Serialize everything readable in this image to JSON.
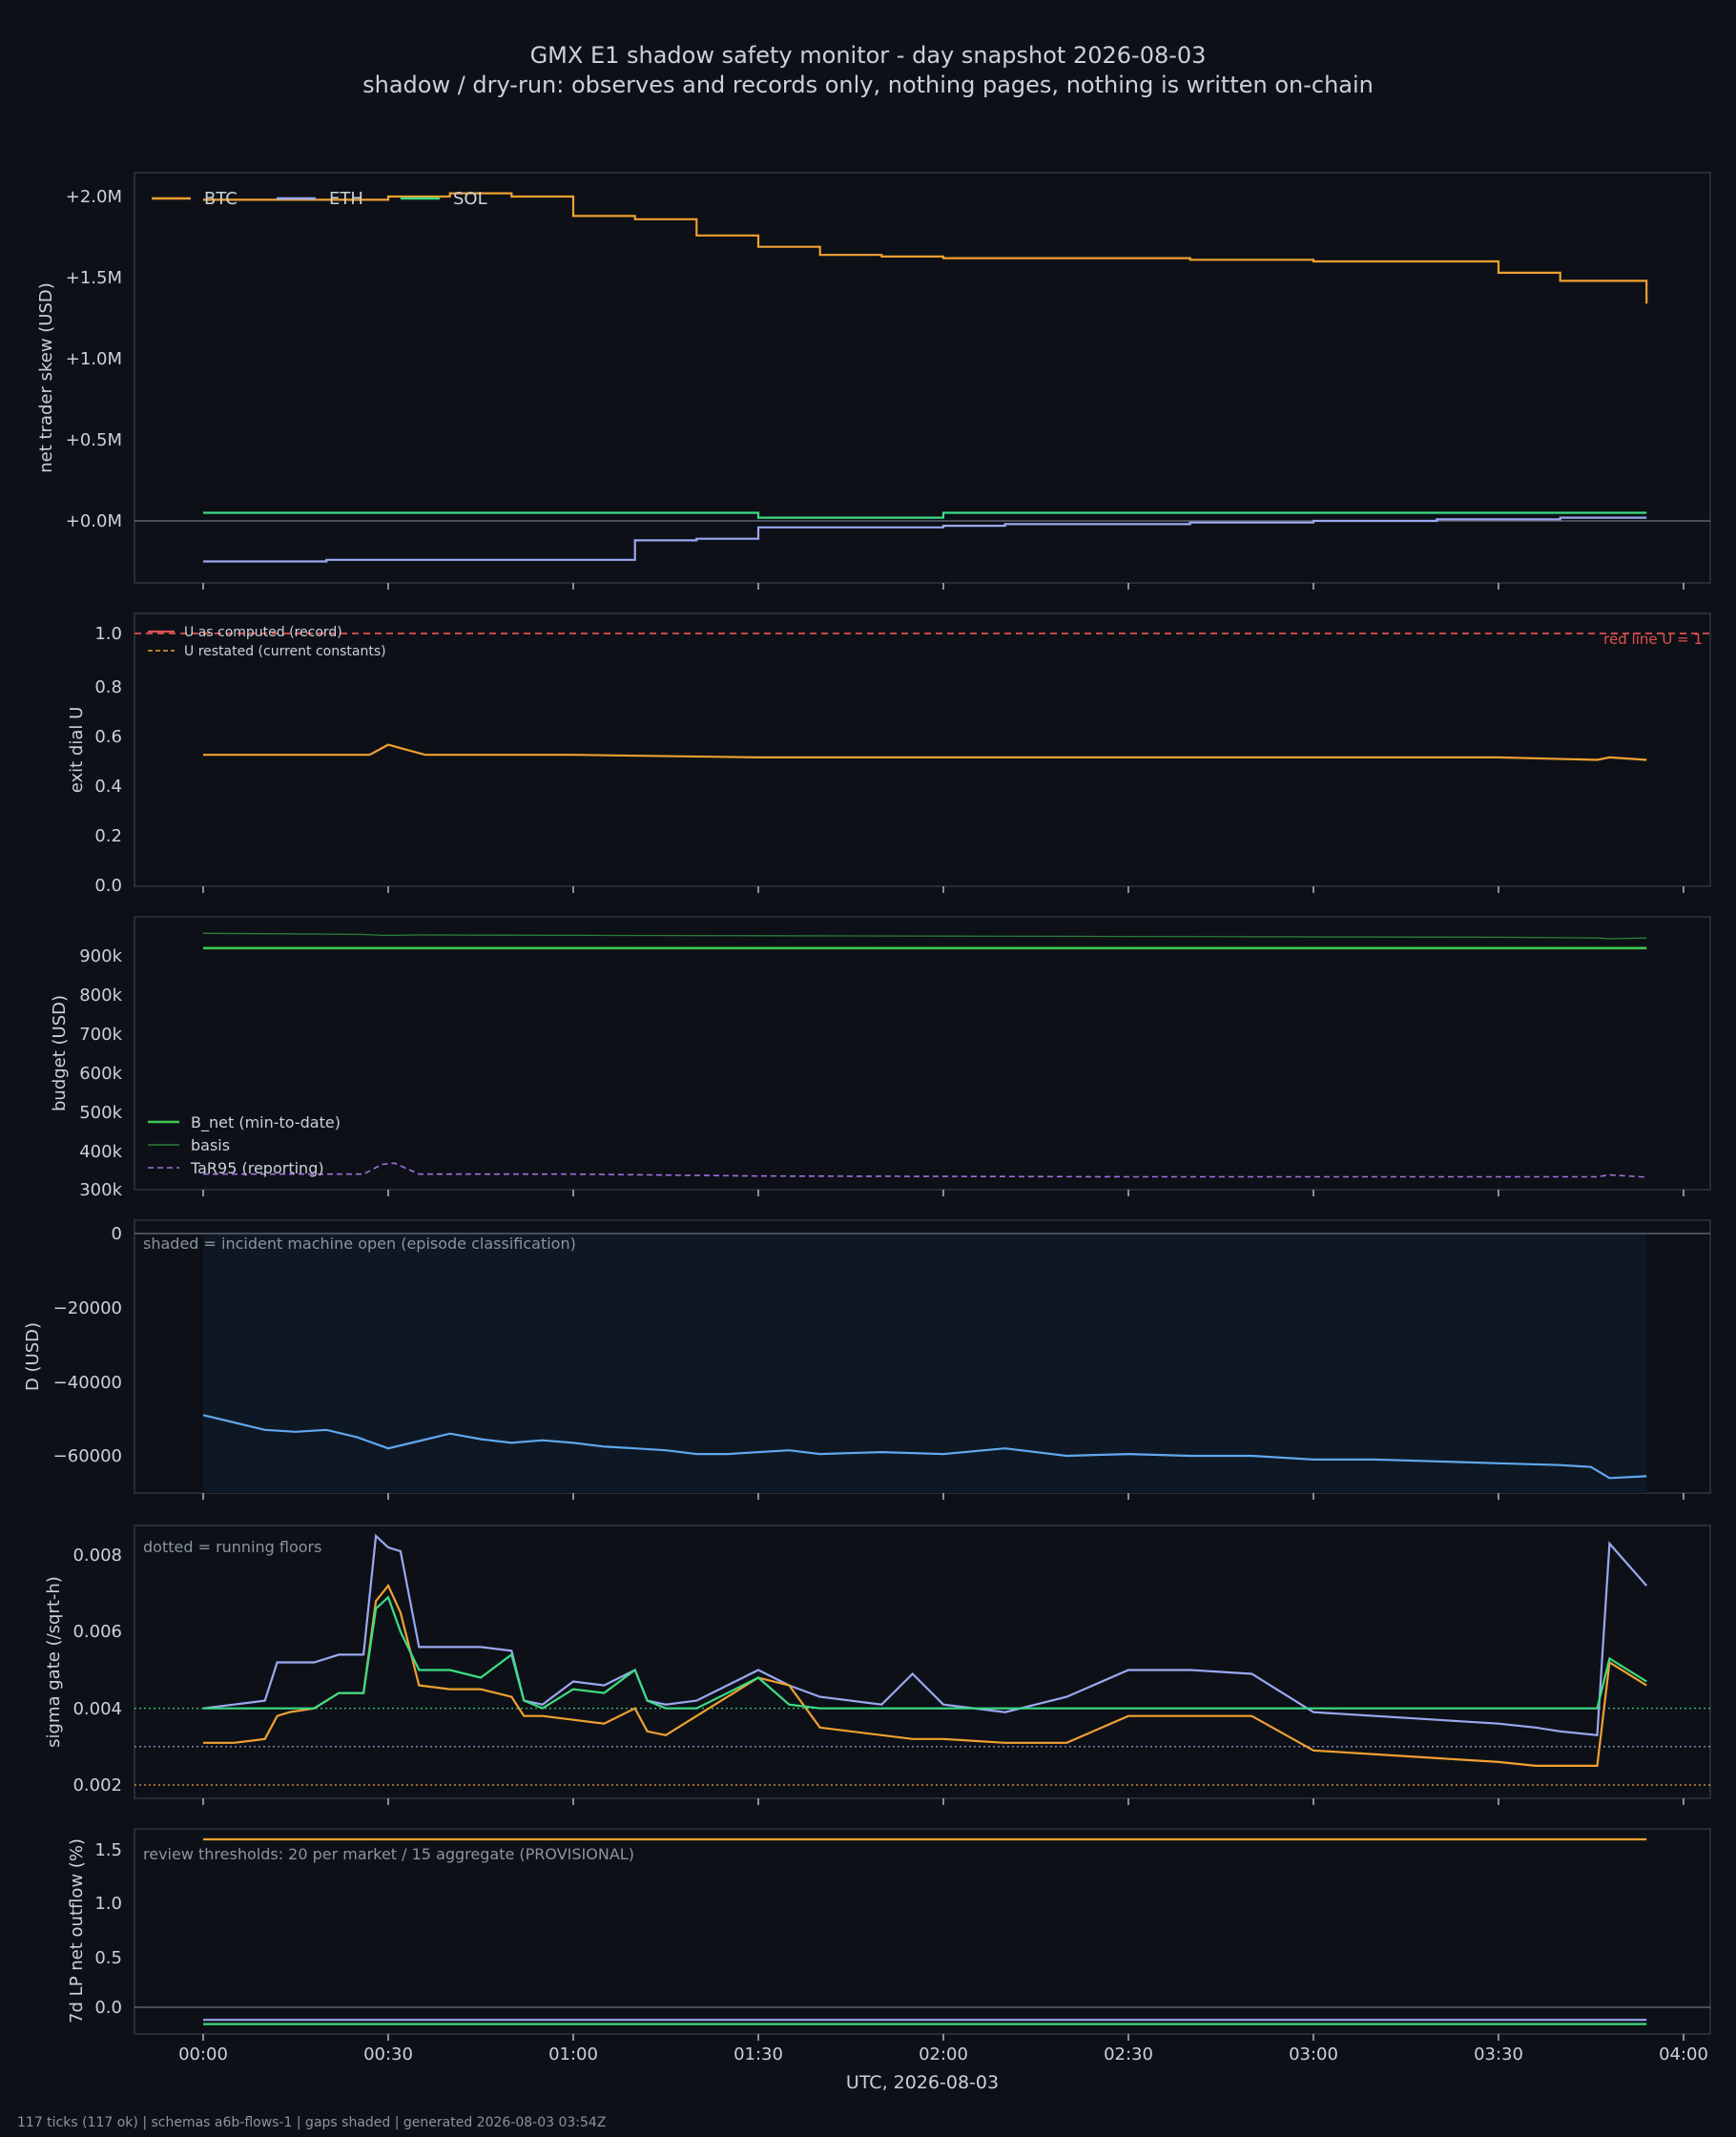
{
  "title": "GMX E1 shadow safety monitor - day snapshot 2026-08-03",
  "subtitle": "shadow / dry-run: observes and records only, nothing pages, nothing is written on-chain",
  "footer": "117 ticks (117 ok) | schemas a6b-flows-1 | gaps shaded | generated 2026-08-03 03:54Z",
  "colors": {
    "background": "#0d1117",
    "panel_border": "#30363d",
    "text": "#c9d1d9",
    "muted": "#8b949e",
    "btc": "#f0a030",
    "eth": "#9aa8f0",
    "sol": "#3ddc84",
    "red": "#e05050",
    "green": "#3fc850",
    "basis": "#2d7d3a",
    "tar": "#a070e0",
    "d_line": "#60a8f0",
    "shade": "#0e1824"
  },
  "chart_data": [
    {
      "type": "line",
      "ylabel": "net trader skew (USD)",
      "yticks": [
        "+0.0M",
        "+0.5M",
        "+1.0M",
        "+1.5M",
        "+2.0M"
      ],
      "legend": {
        "placement": "top-left",
        "entries": [
          "BTC",
          "ETH",
          "SOL"
        ]
      },
      "x_minutes": [
        0,
        20,
        30,
        40,
        50,
        60,
        70,
        80,
        90,
        100,
        110,
        120,
        130,
        140,
        150,
        160,
        170,
        180,
        190,
        200,
        210,
        220,
        234
      ],
      "series": [
        {
          "name": "BTC",
          "values_musd": [
            1.98,
            1.98,
            2.0,
            2.02,
            2.0,
            1.88,
            1.86,
            1.76,
            1.69,
            1.64,
            1.63,
            1.62,
            1.62,
            1.62,
            1.62,
            1.61,
            1.61,
            1.6,
            1.6,
            1.6,
            1.53,
            1.48,
            1.34
          ]
        },
        {
          "name": "ETH",
          "values_musd": [
            -0.25,
            -0.24,
            -0.24,
            -0.24,
            -0.24,
            -0.24,
            -0.12,
            -0.11,
            -0.04,
            -0.04,
            -0.04,
            -0.03,
            -0.02,
            -0.02,
            -0.02,
            -0.01,
            -0.01,
            0.0,
            0.0,
            0.01,
            0.01,
            0.02,
            0.02
          ]
        },
        {
          "name": "SOL",
          "values_musd": [
            0.05,
            0.05,
            0.05,
            0.05,
            0.05,
            0.05,
            0.05,
            0.05,
            0.02,
            0.02,
            0.02,
            0.05,
            0.05,
            0.05,
            0.05,
            0.05,
            0.05,
            0.05,
            0.05,
            0.05,
            0.05,
            0.05,
            0.05
          ]
        }
      ]
    },
    {
      "type": "line",
      "ylabel": "exit dial U",
      "yticks": [
        "0.0",
        "0.2",
        "0.4",
        "0.6",
        "0.8",
        "1.0"
      ],
      "legend": {
        "placement": "top-left",
        "entries": [
          "U as computed (record)",
          "U restated (current constants)"
        ]
      },
      "annotation": "red line U = 1",
      "threshold": 1.0,
      "x_minutes": [
        0,
        20,
        27,
        30,
        33,
        36,
        60,
        90,
        150,
        210,
        226,
        228,
        234
      ],
      "series": [
        {
          "name": "U as computed (record)",
          "values": [
            0.52,
            0.52,
            0.52,
            0.56,
            0.54,
            0.52,
            0.52,
            0.51,
            0.51,
            0.51,
            0.5,
            0.51,
            0.5
          ]
        }
      ]
    },
    {
      "type": "line",
      "ylabel": "budget (USD)",
      "yticks": [
        "300k",
        "400k",
        "500k",
        "600k",
        "700k",
        "800k",
        "900k"
      ],
      "legend": {
        "placement": "bottom-left",
        "entries": [
          "B_net (min-to-date)",
          "basis",
          "TaR95 (reporting)"
        ]
      },
      "x_minutes": [
        0,
        20,
        26,
        29,
        31,
        35,
        60,
        90,
        150,
        210,
        226,
        228,
        234
      ],
      "series": [
        {
          "name": "B_net (min-to-date)",
          "values_k": [
            920,
            920,
            920,
            920,
            920,
            920,
            920,
            920,
            920,
            920,
            920,
            920,
            920
          ]
        },
        {
          "name": "basis",
          "values_k": [
            958,
            956,
            955,
            953,
            953,
            954,
            953,
            952,
            950,
            948,
            946,
            944,
            946
          ]
        },
        {
          "name": "TaR95 (reporting)",
          "values_k": [
            340,
            340,
            340,
            365,
            368,
            340,
            340,
            335,
            333,
            333,
            333,
            338,
            332
          ]
        }
      ]
    },
    {
      "type": "line",
      "ylabel": "D (USD)",
      "yticks": [
        "−60000",
        "−40000",
        "−20000",
        "0"
      ],
      "annotation": "shaded = incident machine open (episode classification)",
      "shaded_range_minutes": [
        0,
        234
      ],
      "x_minutes": [
        0,
        5,
        10,
        15,
        20,
        25,
        30,
        35,
        40,
        45,
        50,
        55,
        60,
        65,
        70,
        75,
        80,
        85,
        90,
        95,
        100,
        110,
        120,
        130,
        140,
        150,
        160,
        170,
        180,
        190,
        200,
        210,
        220,
        225,
        228,
        234
      ],
      "series": [
        {
          "name": "D",
          "values": [
            -49000,
            -51000,
            -53000,
            -53500,
            -53000,
            -55000,
            -58000,
            -56000,
            -54000,
            -55500,
            -56500,
            -55800,
            -56500,
            -57500,
            -58000,
            -58500,
            -59500,
            -59500,
            -59000,
            -58500,
            -59500,
            -59000,
            -59500,
            -58000,
            -60000,
            -59500,
            -60000,
            -60000,
            -61000,
            -61000,
            -61500,
            -62000,
            -62500,
            -63000,
            -66000,
            -65500
          ]
        }
      ]
    },
    {
      "type": "line",
      "ylabel": "sigma gate (/sqrt-h)",
      "yticks": [
        "0.002",
        "0.004",
        "0.006",
        "0.008"
      ],
      "annotation": "dotted = running floors",
      "floors": [
        {
          "value": 0.004,
          "color": "#3ddc84"
        },
        {
          "value": 0.003,
          "color": "#9aa8f0"
        },
        {
          "value": 0.002,
          "color": "#f0a030"
        }
      ],
      "x_minutes": [
        0,
        5,
        10,
        12,
        14,
        18,
        22,
        26,
        28,
        30,
        32,
        35,
        40,
        45,
        50,
        52,
        55,
        60,
        65,
        70,
        72,
        75,
        80,
        90,
        95,
        100,
        110,
        115,
        120,
        130,
        140,
        150,
        160,
        170,
        180,
        190,
        200,
        210,
        216,
        220,
        226,
        228,
        234
      ],
      "series": [
        {
          "name": "ETH",
          "values": [
            0.004,
            0.0041,
            0.0042,
            0.0052,
            0.0052,
            0.0052,
            0.0054,
            0.0054,
            0.0085,
            0.0082,
            0.0081,
            0.0056,
            0.0056,
            0.0056,
            0.0055,
            0.0042,
            0.0041,
            0.0047,
            0.0046,
            0.005,
            0.0042,
            0.0041,
            0.0042,
            0.005,
            0.0046,
            0.0043,
            0.0041,
            0.0049,
            0.0041,
            0.0039,
            0.0043,
            0.005,
            0.005,
            0.0049,
            0.0039,
            0.0038,
            0.0037,
            0.0036,
            0.0035,
            0.0034,
            0.0033,
            0.0083,
            0.0072
          ]
        },
        {
          "name": "BTC",
          "values": [
            0.0031,
            0.0031,
            0.0032,
            0.0038,
            0.0039,
            0.004,
            0.0044,
            0.0044,
            0.0068,
            0.0072,
            0.0065,
            0.0046,
            0.0045,
            0.0045,
            0.0043,
            0.0038,
            0.0038,
            0.0037,
            0.0036,
            0.004,
            0.0034,
            0.0033,
            0.0038,
            0.0048,
            0.0046,
            0.0035,
            0.0033,
            0.0032,
            0.0032,
            0.0031,
            0.0031,
            0.0038,
            0.0038,
            0.0038,
            0.0029,
            0.0028,
            0.0027,
            0.0026,
            0.0025,
            0.0025,
            0.0025,
            0.0052,
            0.0046
          ]
        },
        {
          "name": "SOL",
          "values": [
            0.004,
            0.004,
            0.004,
            0.004,
            0.004,
            0.004,
            0.0044,
            0.0044,
            0.0066,
            0.0069,
            0.006,
            0.005,
            0.005,
            0.0048,
            0.0054,
            0.0042,
            0.004,
            0.0045,
            0.0044,
            0.005,
            0.0042,
            0.004,
            0.004,
            0.0048,
            0.0041,
            0.004,
            0.004,
            0.004,
            0.004,
            0.004,
            0.004,
            0.004,
            0.004,
            0.004,
            0.004,
            0.004,
            0.004,
            0.004,
            0.004,
            0.004,
            0.004,
            0.0053,
            0.0047
          ]
        }
      ]
    },
    {
      "type": "line",
      "ylabel": "7d LP net outflow (%)",
      "xlabel": "UTC, 2026-08-03",
      "yticks": [
        "0.0",
        "0.5",
        "1.0",
        "1.5"
      ],
      "xticks": [
        "00:00",
        "00:30",
        "01:00",
        "01:30",
        "02:00",
        "02:30",
        "03:00",
        "03:30",
        "04:00"
      ],
      "annotation": "review thresholds: 20 per market / 15 aggregate (PROVISIONAL)",
      "x_minutes": [
        0,
        234
      ],
      "series": [
        {
          "name": "BTC",
          "values": [
            1.6,
            1.6
          ]
        },
        {
          "name": "ETH",
          "values": [
            -0.12,
            -0.12
          ]
        },
        {
          "name": "SOL",
          "values": [
            -0.16,
            -0.16
          ]
        }
      ]
    }
  ]
}
